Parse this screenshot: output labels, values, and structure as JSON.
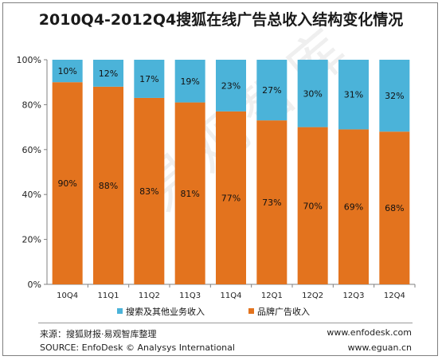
{
  "title": "2010Q4-2012Q4搜狐在线广告总收入结构变化情况",
  "chart_data": {
    "type": "bar",
    "stacked": true,
    "percent": true,
    "categories": [
      "10Q4",
      "11Q1",
      "11Q2",
      "11Q3",
      "11Q4",
      "12Q1",
      "12Q2",
      "12Q3",
      "12Q4"
    ],
    "series": [
      {
        "name": "品牌广告收入",
        "color": "#e3731e",
        "values": [
          90,
          88,
          83,
          81,
          77,
          73,
          70,
          69,
          68
        ]
      },
      {
        "name": "搜索及其他业务收入",
        "color": "#4bb3d9",
        "values": [
          10,
          12,
          17,
          19,
          23,
          27,
          30,
          31,
          32
        ]
      }
    ],
    "legend_order": [
      "搜索及其他业务收入",
      "品牌广告收入"
    ],
    "yticks": [
      "0%",
      "20%",
      "40%",
      "60%",
      "80%",
      "100%"
    ],
    "ylim": [
      0,
      100
    ],
    "legend_position": "bottom",
    "grid": false
  },
  "watermark": "易观智库",
  "footer": {
    "source_cn": "来源：搜狐财报·易观智库整理",
    "source_en": "SOURCE: EnfoDesk © Analysys International",
    "url1": "www.enfodesk.com",
    "url2": "www.eguan.cn"
  }
}
